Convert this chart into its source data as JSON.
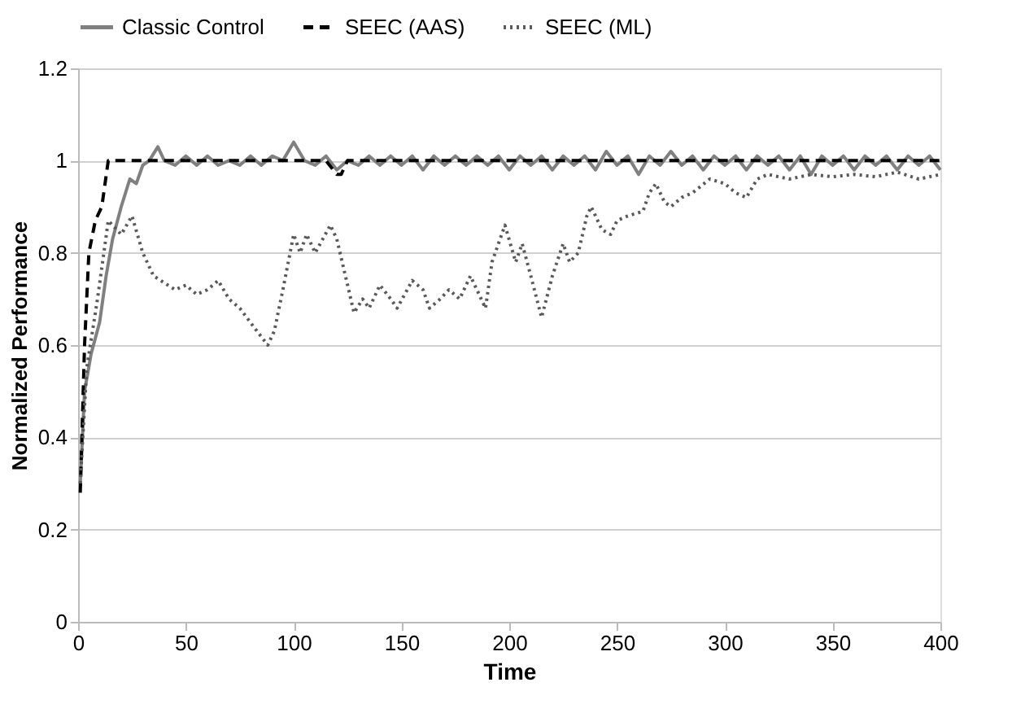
{
  "chart_data": {
    "type": "line",
    "xlabel": "Time",
    "ylabel": "Normalized Performance",
    "xlim": [
      0,
      400
    ],
    "xticks": [
      0,
      50,
      100,
      150,
      200,
      250,
      300,
      350,
      400
    ],
    "ylim": [
      0,
      1.2
    ],
    "yticks": [
      0,
      0.2,
      0.4,
      0.6,
      0.8,
      1,
      1.2
    ],
    "grid": "y",
    "legend": "top",
    "marker": "none",
    "series": [
      {
        "name": "Classic Control",
        "color": "#808080",
        "line_style": "solid",
        "x": [
          1,
          3,
          6,
          10,
          13,
          16,
          20,
          24,
          27,
          30,
          33,
          37,
          40,
          45,
          50,
          55,
          60,
          65,
          70,
          75,
          80,
          85,
          90,
          95,
          100,
          105,
          110,
          115,
          120,
          125,
          130,
          135,
          140,
          145,
          150,
          155,
          160,
          165,
          170,
          175,
          180,
          185,
          190,
          195,
          200,
          205,
          210,
          215,
          220,
          225,
          230,
          235,
          240,
          245,
          250,
          255,
          260,
          265,
          270,
          275,
          280,
          285,
          290,
          295,
          300,
          305,
          310,
          315,
          320,
          325,
          330,
          335,
          340,
          345,
          350,
          355,
          360,
          365,
          370,
          375,
          380,
          385,
          390,
          395,
          400
        ],
        "values": [
          0.3,
          0.5,
          0.58,
          0.65,
          0.75,
          0.83,
          0.9,
          0.96,
          0.95,
          0.99,
          1.0,
          1.03,
          1.0,
          0.99,
          1.01,
          0.99,
          1.01,
          0.99,
          1.0,
          0.99,
          1.01,
          0.99,
          1.01,
          1.0,
          1.04,
          1.0,
          0.99,
          1.01,
          0.98,
          1.0,
          0.99,
          1.01,
          0.99,
          1.01,
          0.99,
          1.01,
          0.98,
          1.01,
          0.99,
          1.01,
          0.99,
          1.01,
          0.99,
          1.01,
          0.98,
          1.01,
          0.99,
          1.01,
          0.98,
          1.01,
          0.99,
          1.01,
          0.98,
          1.02,
          0.99,
          1.01,
          0.97,
          1.01,
          0.99,
          1.02,
          0.99,
          1.01,
          0.98,
          1.01,
          0.99,
          1.01,
          0.98,
          1.01,
          0.99,
          1.01,
          0.98,
          1.01,
          0.97,
          1.01,
          0.99,
          1.01,
          0.98,
          1.01,
          0.99,
          1.01,
          0.98,
          1.01,
          0.99,
          1.01,
          0.98
        ]
      },
      {
        "name": "SEEC (AAS)",
        "color": "#000000",
        "line_style": "dashed",
        "x": [
          1,
          3,
          5,
          8,
          11,
          14,
          20,
          50,
          100,
          115,
          120,
          122,
          125,
          150,
          200,
          250,
          300,
          350,
          400
        ],
        "values": [
          0.28,
          0.6,
          0.8,
          0.87,
          0.9,
          1.0,
          1.0,
          1.0,
          1.0,
          1.0,
          0.97,
          0.97,
          1.0,
          1.0,
          1.0,
          1.0,
          1.0,
          1.0,
          1.0
        ]
      },
      {
        "name": "SEEC (ML)",
        "color": "#595959",
        "line_style": "dotted",
        "x": [
          1,
          4,
          9,
          14,
          20,
          25,
          30,
          35,
          45,
          50,
          55,
          60,
          65,
          70,
          75,
          83,
          88,
          91,
          95,
          100,
          103,
          106,
          110,
          117,
          120,
          125,
          128,
          132,
          135,
          140,
          145,
          148,
          155,
          160,
          163,
          168,
          172,
          177,
          182,
          185,
          189,
          192,
          198,
          203,
          206,
          210,
          215,
          220,
          225,
          228,
          232,
          236,
          238,
          243,
          247,
          250,
          255,
          262,
          265,
          268,
          272,
          275,
          280,
          285,
          293,
          300,
          305,
          310,
          315,
          320,
          330,
          340,
          350,
          360,
          370,
          380,
          390,
          400
        ],
        "values": [
          0.3,
          0.55,
          0.7,
          0.87,
          0.84,
          0.88,
          0.8,
          0.75,
          0.72,
          0.73,
          0.71,
          0.72,
          0.74,
          0.7,
          0.68,
          0.63,
          0.6,
          0.63,
          0.72,
          0.84,
          0.8,
          0.84,
          0.8,
          0.86,
          0.83,
          0.73,
          0.67,
          0.7,
          0.68,
          0.73,
          0.7,
          0.68,
          0.74,
          0.72,
          0.68,
          0.7,
          0.72,
          0.7,
          0.75,
          0.72,
          0.68,
          0.78,
          0.86,
          0.78,
          0.82,
          0.75,
          0.66,
          0.75,
          0.82,
          0.78,
          0.8,
          0.88,
          0.9,
          0.85,
          0.84,
          0.87,
          0.88,
          0.89,
          0.93,
          0.95,
          0.91,
          0.9,
          0.92,
          0.93,
          0.96,
          0.95,
          0.93,
          0.92,
          0.96,
          0.97,
          0.96,
          0.97,
          0.965,
          0.97,
          0.965,
          0.975,
          0.96,
          0.97
        ]
      }
    ]
  }
}
